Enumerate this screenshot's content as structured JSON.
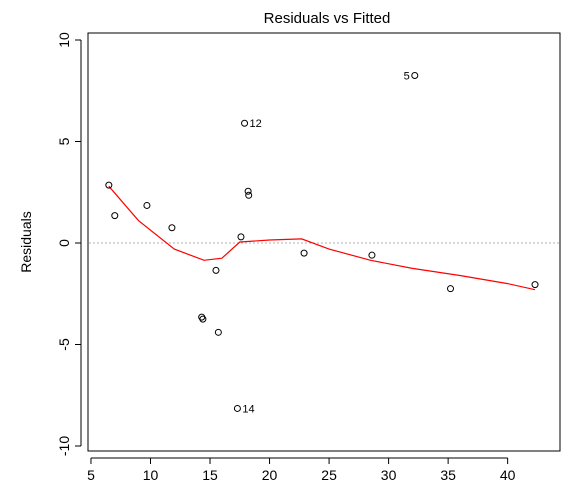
{
  "chart_data": {
    "type": "scatter",
    "title": "Residuals vs Fitted",
    "xlabel": "",
    "ylabel": "Residuals",
    "xlim": [
      5,
      43
    ],
    "ylim": [
      -10,
      10
    ],
    "x_ticks": [
      5,
      10,
      15,
      20,
      25,
      30,
      35,
      40
    ],
    "x_tick_labels": [
      "5",
      "10",
      "15",
      "20",
      "25",
      "30",
      "35",
      "40"
    ],
    "y_ticks": [
      -10,
      -5,
      0,
      5,
      10
    ],
    "y_tick_labels": [
      "-10",
      "-5",
      "0",
      "5",
      "10"
    ],
    "grid": false,
    "points": [
      {
        "x": 6.5,
        "y": 2.85,
        "label": ""
      },
      {
        "x": 7.0,
        "y": 1.35,
        "label": ""
      },
      {
        "x": 9.7,
        "y": 1.85,
        "label": ""
      },
      {
        "x": 11.8,
        "y": 0.75,
        "label": ""
      },
      {
        "x": 14.3,
        "y": -3.65,
        "label": ""
      },
      {
        "x": 14.4,
        "y": -3.75,
        "label": ""
      },
      {
        "x": 15.5,
        "y": -1.35,
        "label": ""
      },
      {
        "x": 15.7,
        "y": -4.4,
        "label": ""
      },
      {
        "x": 17.3,
        "y": -8.15,
        "label": "14"
      },
      {
        "x": 17.6,
        "y": 0.3,
        "label": ""
      },
      {
        "x": 17.9,
        "y": 5.9,
        "label": "12"
      },
      {
        "x": 18.2,
        "y": 2.55,
        "label": ""
      },
      {
        "x": 18.25,
        "y": 2.35,
        "label": ""
      },
      {
        "x": 22.9,
        "y": -0.5,
        "label": ""
      },
      {
        "x": 28.6,
        "y": -0.6,
        "label": ""
      },
      {
        "x": 32.2,
        "y": 8.25,
        "label": "5"
      },
      {
        "x": 35.2,
        "y": -2.25,
        "label": ""
      },
      {
        "x": 42.3,
        "y": -2.05,
        "label": ""
      }
    ],
    "reference_line_y": 0,
    "smooth_line": {
      "x": [
        6.5,
        9,
        12,
        14.5,
        16,
        17.5,
        20,
        22.7,
        25,
        28.5,
        32,
        36,
        40,
        42.3
      ],
      "y": [
        2.8,
        1.1,
        -0.3,
        -0.85,
        -0.75,
        0.05,
        0.15,
        0.2,
        -0.3,
        -0.85,
        -1.25,
        -1.6,
        -2.0,
        -2.3
      ]
    },
    "colors": {
      "points": "#000000",
      "smooth": "#ff0000",
      "reference": "#b0b0b0",
      "axis": "#000000"
    }
  }
}
